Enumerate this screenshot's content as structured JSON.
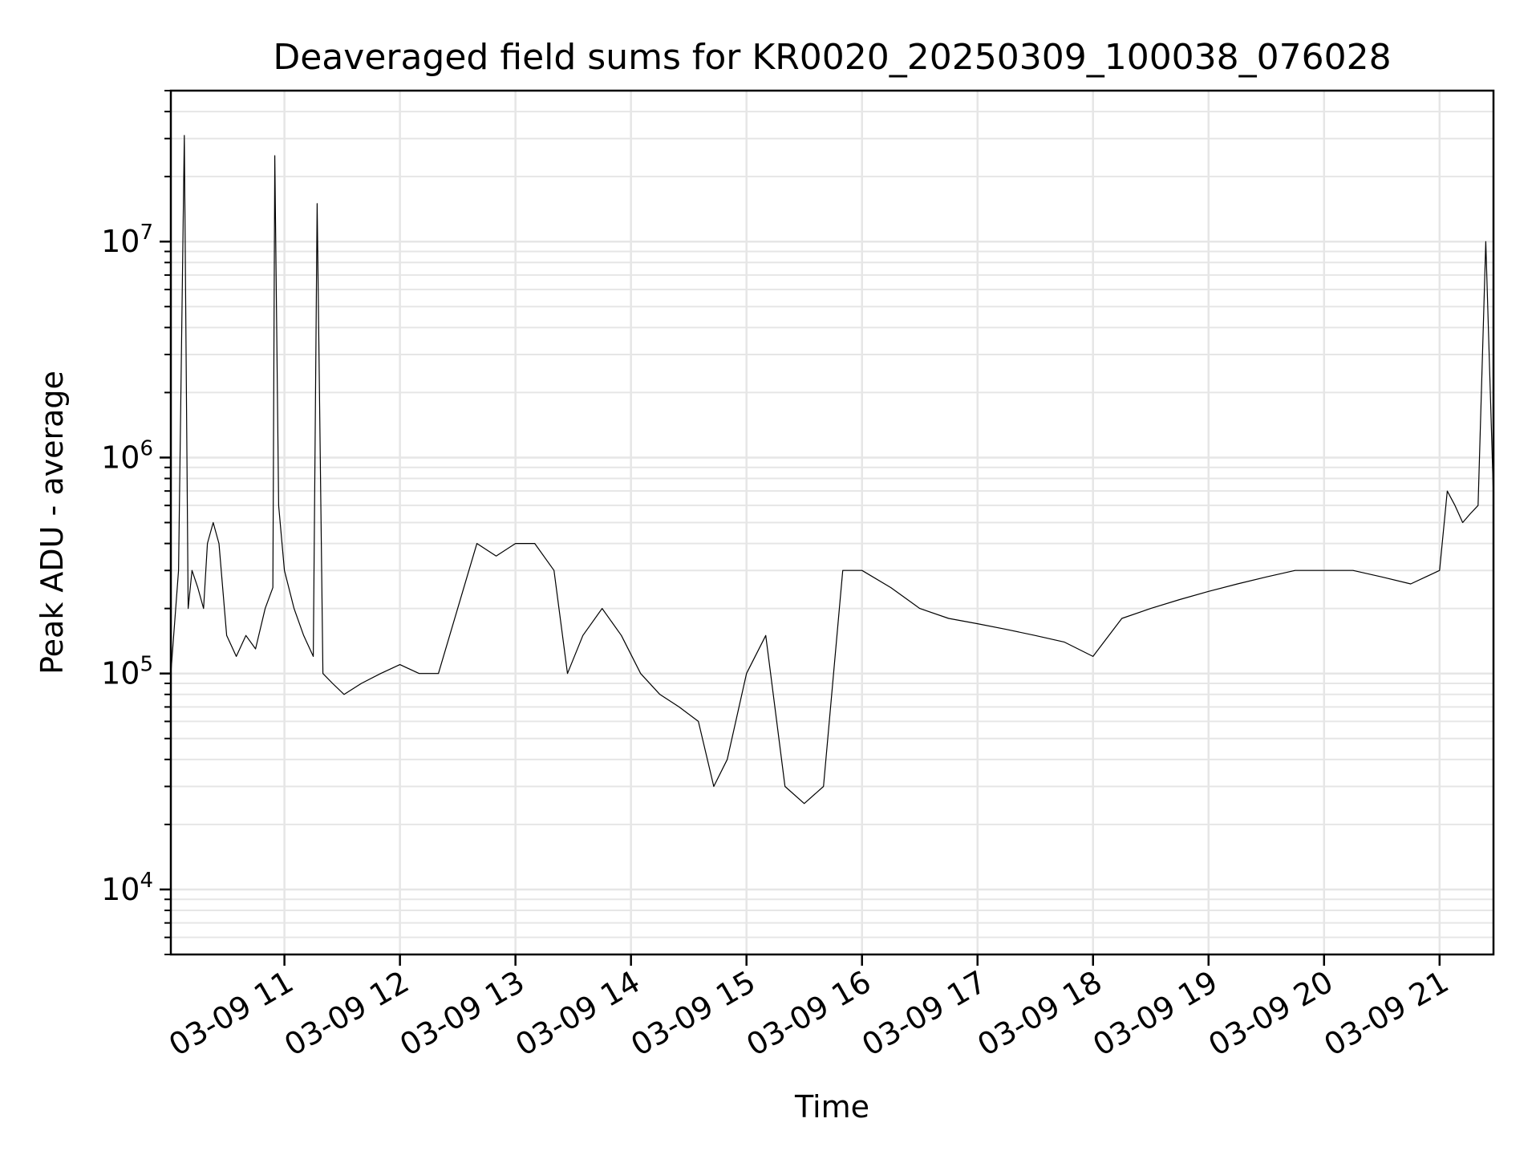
{
  "chart_data": {
    "type": "line",
    "title": "Deaveraged field sums for KR0020_20250309_100038_076028",
    "xlabel": "Time",
    "ylabel": "Peak ADU - average",
    "yscale": "log",
    "ylim": [
      5000,
      50000000
    ],
    "xlim": [
      "2025-03-09 10:01",
      "2025-03-09 21:28"
    ],
    "grid": "major and minor",
    "line_color": "#000000",
    "x_ticks": [
      "03-09 11",
      "03-09 12",
      "03-09 13",
      "03-09 14",
      "03-09 15",
      "03-09 16",
      "03-09 17",
      "03-09 18",
      "03-09 19",
      "03-09 20",
      "03-09 21"
    ],
    "y_ticks": [
      {
        "base": "10",
        "exp": "4",
        "value": 10000
      },
      {
        "base": "10",
        "exp": "5",
        "value": 100000
      },
      {
        "base": "10",
        "exp": "6",
        "value": 1000000
      },
      {
        "base": "10",
        "exp": "7",
        "value": 10000000
      }
    ],
    "series": [
      {
        "x": [
          "2025-03-09 10:01",
          "2025-03-09 10:05",
          "2025-03-09 10:08",
          "2025-03-09 10:10",
          "2025-03-09 10:12",
          "2025-03-09 10:15",
          "2025-03-09 10:18",
          "2025-03-09 10:20",
          "2025-03-09 10:23",
          "2025-03-09 10:26",
          "2025-03-09 10:30",
          "2025-03-09 10:35",
          "2025-03-09 10:40",
          "2025-03-09 10:45",
          "2025-03-09 10:50",
          "2025-03-09 10:54",
          "2025-03-09 10:55",
          "2025-03-09 10:57",
          "2025-03-09 11:00",
          "2025-03-09 11:05",
          "2025-03-09 11:10",
          "2025-03-09 11:15",
          "2025-03-09 11:17",
          "2025-03-09 11:20",
          "2025-03-09 11:25",
          "2025-03-09 11:31",
          "2025-03-09 11:40",
          "2025-03-09 11:50",
          "2025-03-09 12:00",
          "2025-03-09 12:10",
          "2025-03-09 12:20",
          "2025-03-09 12:30",
          "2025-03-09 12:40",
          "2025-03-09 12:50",
          "2025-03-09 13:00",
          "2025-03-09 13:10",
          "2025-03-09 13:20",
          "2025-03-09 13:27",
          "2025-03-09 13:35",
          "2025-03-09 13:45",
          "2025-03-09 13:55",
          "2025-03-09 14:05",
          "2025-03-09 14:15",
          "2025-03-09 14:25",
          "2025-03-09 14:35",
          "2025-03-09 14:43",
          "2025-03-09 14:50",
          "2025-03-09 15:00",
          "2025-03-09 15:10",
          "2025-03-09 15:20",
          "2025-03-09 15:30",
          "2025-03-09 15:40",
          "2025-03-09 15:50",
          "2025-03-09 16:00",
          "2025-03-09 16:15",
          "2025-03-09 16:30",
          "2025-03-09 16:45",
          "2025-03-09 17:00",
          "2025-03-09 17:15",
          "2025-03-09 17:30",
          "2025-03-09 17:45",
          "2025-03-09 18:00",
          "2025-03-09 18:15",
          "2025-03-09 18:30",
          "2025-03-09 18:45",
          "2025-03-09 19:00",
          "2025-03-09 19:15",
          "2025-03-09 19:30",
          "2025-03-09 19:45",
          "2025-03-09 20:00",
          "2025-03-09 20:15",
          "2025-03-09 20:30",
          "2025-03-09 20:45",
          "2025-03-09 21:00",
          "2025-03-09 21:04",
          "2025-03-09 21:08",
          "2025-03-09 21:12",
          "2025-03-09 21:16",
          "2025-03-09 21:20",
          "2025-03-09 21:24",
          "2025-03-09 21:28"
        ],
        "y": [
          100000,
          300000,
          31000000,
          200000,
          300000,
          250000,
          200000,
          400000,
          500000,
          400000,
          150000,
          120000,
          150000,
          130000,
          200000,
          250000,
          25000000,
          600000,
          300000,
          200000,
          150000,
          120000,
          15000000,
          100000,
          90000,
          80000,
          90000,
          100000,
          110000,
          100000,
          100000,
          200000,
          400000,
          350000,
          400000,
          400000,
          300000,
          100000,
          150000,
          200000,
          150000,
          100000,
          80000,
          70000,
          60000,
          30000,
          40000,
          100000,
          150000,
          30000,
          25000,
          30000,
          300000,
          300000,
          250000,
          200000,
          180000,
          170000,
          160000,
          150000,
          140000,
          120000,
          180000,
          200000,
          220000,
          240000,
          260000,
          280000,
          300000,
          300000,
          300000,
          280000,
          260000,
          300000,
          700000,
          600000,
          500000,
          550000,
          600000,
          10000000,
          650000
        ]
      }
    ]
  }
}
